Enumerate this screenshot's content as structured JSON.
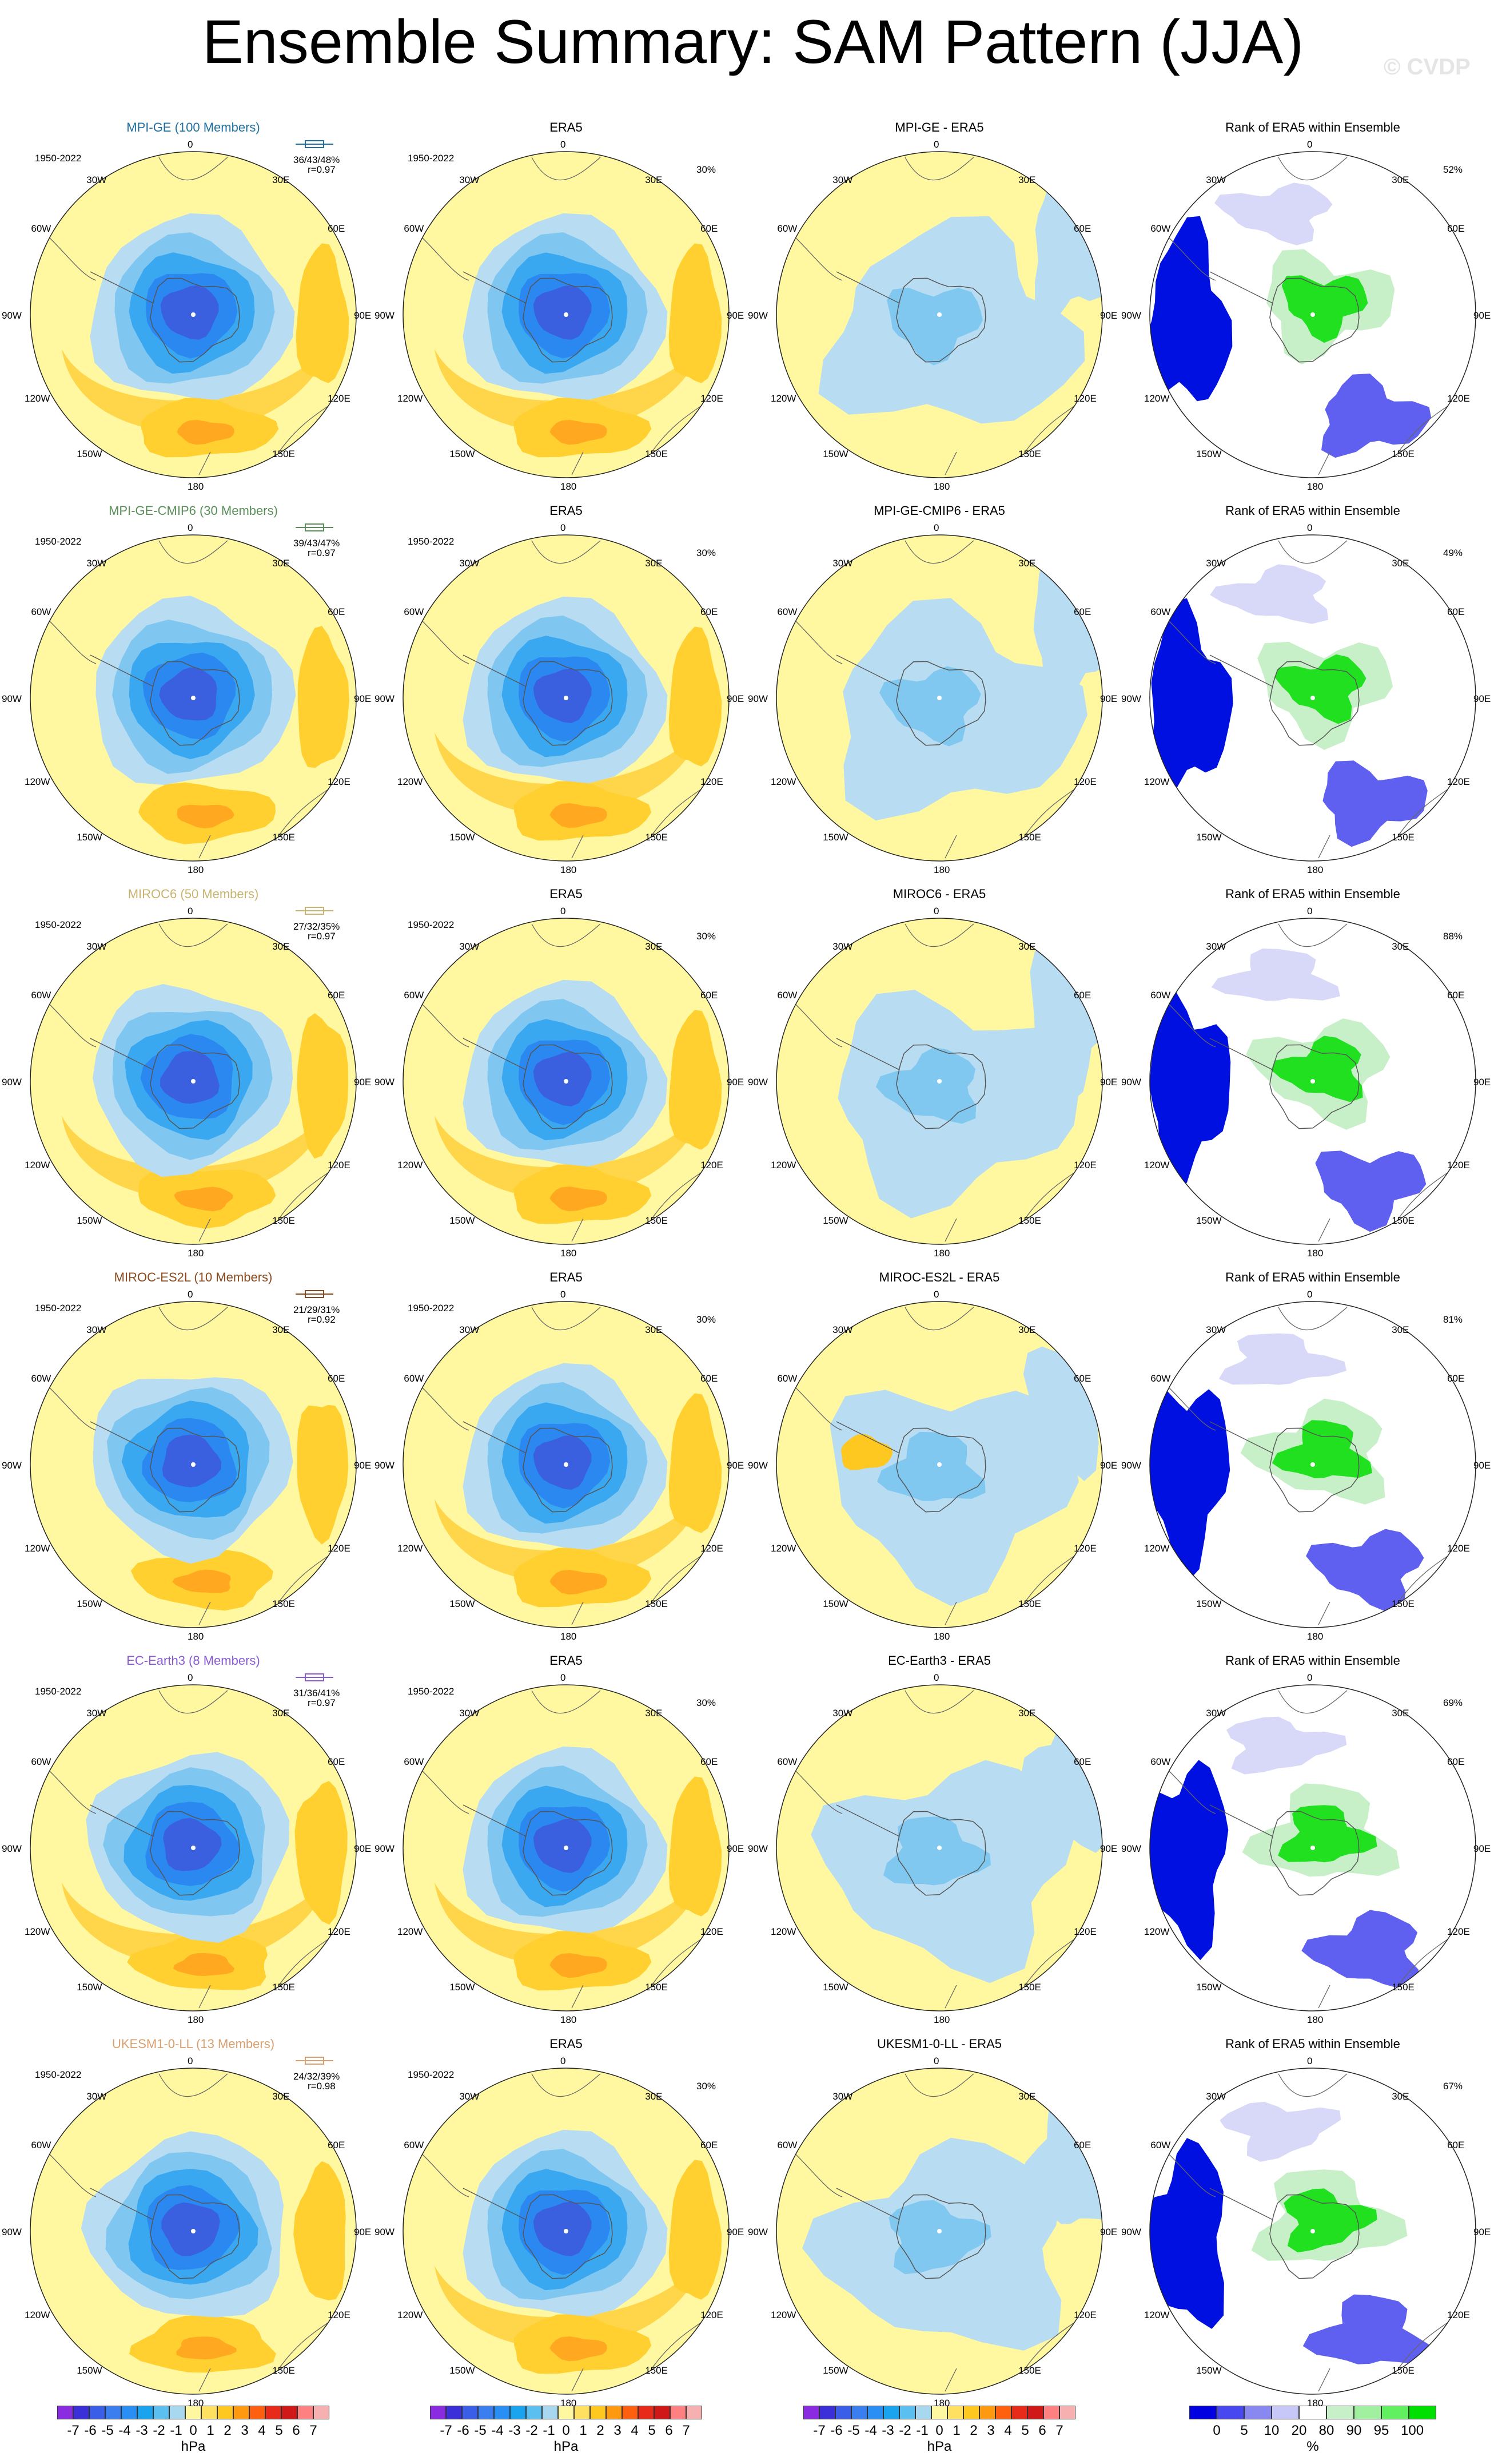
{
  "title": "Ensemble Summary: SAM Pattern (JJA)",
  "copyright": "© CVDP",
  "lon_labels": {
    "top": "0",
    "bottom": "180",
    "left": "90W",
    "right": "90E",
    "ul1": "30W",
    "ul2": "60W",
    "ll1": "120W",
    "ll2": "150W",
    "ur1": "30E",
    "ur2": "60E",
    "lr1": "120E",
    "lr2": "150E"
  },
  "rows": [
    {
      "model": "MPI-GE (100 Members)",
      "color": "#1f6fa0",
      "stats": "36/43/48%",
      "corr": "r=0.97",
      "diff": "MPI-GE - ERA5",
      "rank_pct": "52%"
    },
    {
      "model": "MPI-GE-CMIP6 (30 Members)",
      "color": "#5a8f5a",
      "stats": "39/43/47%",
      "corr": "r=0.97",
      "diff": "MPI-GE-CMIP6 - ERA5",
      "rank_pct": "49%"
    },
    {
      "model": "MIROC6 (50 Members)",
      "color": "#c8b470",
      "stats": "27/32/35%",
      "corr": "r=0.97",
      "diff": "MIROC6 - ERA5",
      "rank_pct": "88%"
    },
    {
      "model": "MIROC-ES2L (10 Members)",
      "color": "#8a4a1e",
      "stats": "21/29/31%",
      "corr": "r=0.92",
      "diff": "MIROC-ES2L - ERA5",
      "rank_pct": "81%"
    },
    {
      "model": "EC-Earth3 (8 Members)",
      "color": "#8a5ad0",
      "stats": "31/36/41%",
      "corr": "r=0.97",
      "diff": "EC-Earth3 - ERA5",
      "rank_pct": "69%"
    },
    {
      "model": "UKESM1-0-LL (13 Members)",
      "color": "#d8a070",
      "stats": "24/32/39%",
      "corr": "r=0.98",
      "diff": "UKESM1-0-LL - ERA5",
      "rank_pct": "67%"
    }
  ],
  "period": "1950-2022",
  "era5_title": "ERA5",
  "era5_pct": "30%",
  "rank_title": "Rank of ERA5 within Ensemble",
  "colorbar_hpa": {
    "ticks": [
      "-7",
      "-6",
      "-5",
      "-4",
      "-3",
      "-2",
      "-1",
      "0",
      "1",
      "2",
      "3",
      "4",
      "5",
      "6",
      "7"
    ],
    "unit": "hPa",
    "colors": [
      "#8a2be2",
      "#3a2fd8",
      "#3a5ee8",
      "#3a7ef0",
      "#2a8ff5",
      "#1aa4f0",
      "#5bc0f0",
      "#a8d8f0",
      "#fff8a0",
      "#ffe060",
      "#ffc820",
      "#ff9a10",
      "#ff6010",
      "#e82a1a",
      "#d01818",
      "#ff8080",
      "#f7b0b0"
    ]
  },
  "colorbar_rank": {
    "ticks": [
      "0",
      "5",
      "10",
      "20",
      "80",
      "90",
      "95",
      "100"
    ],
    "unit": "%",
    "colors": [
      "#0000e0",
      "#4848f0",
      "#8888f0",
      "#c8c8f8",
      "#ffffff",
      "#c8f0c8",
      "#a0f0a0",
      "#60f060",
      "#00e000"
    ]
  }
}
